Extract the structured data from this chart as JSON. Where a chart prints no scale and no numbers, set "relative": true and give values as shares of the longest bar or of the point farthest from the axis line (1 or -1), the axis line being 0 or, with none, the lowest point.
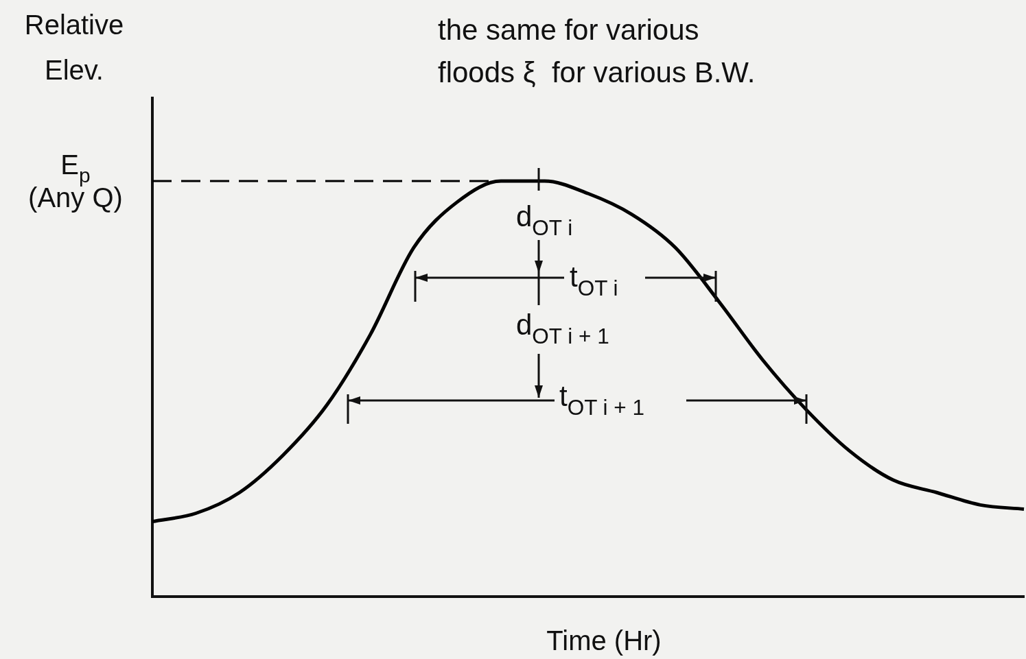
{
  "chart_data": {
    "type": "line",
    "relative": true,
    "title": "the same for various\nfloods ξ  for various B.W.",
    "ylabel": "Relative\nElev.",
    "xlabel": "Time (Hr)",
    "categories": [
      null,
      null,
      null,
      null,
      null,
      null,
      null,
      null,
      null,
      null,
      null,
      null,
      null,
      null,
      null,
      null,
      null,
      null,
      null,
      null,
      null
    ],
    "series": [
      {
        "color": "#000000",
        "values": [
          0.18,
          0.2,
          0.25,
          0.34,
          0.46,
          0.63,
          0.84,
          0.95,
          1.0,
          1.0,
          0.97,
          0.92,
          0.84,
          0.71,
          0.57,
          0.45,
          0.35,
          0.28,
          0.25,
          0.22,
          0.21
        ]
      }
    ],
    "ref_lines": [
      {
        "axis": "y",
        "value": 1.0,
        "label": "E$_{p}$\n(Any Q)",
        "color": "#000000",
        "line_style": "dashed"
      }
    ],
    "annotations": [
      "d$_{OT i}$",
      "t$_{OT i}$",
      "d$_{OT i + 1}$",
      "t$_{OT i + 1}$"
    ],
    "marker": "none",
    "line_style": "solid",
    "grid": false,
    "legend": false
  }
}
